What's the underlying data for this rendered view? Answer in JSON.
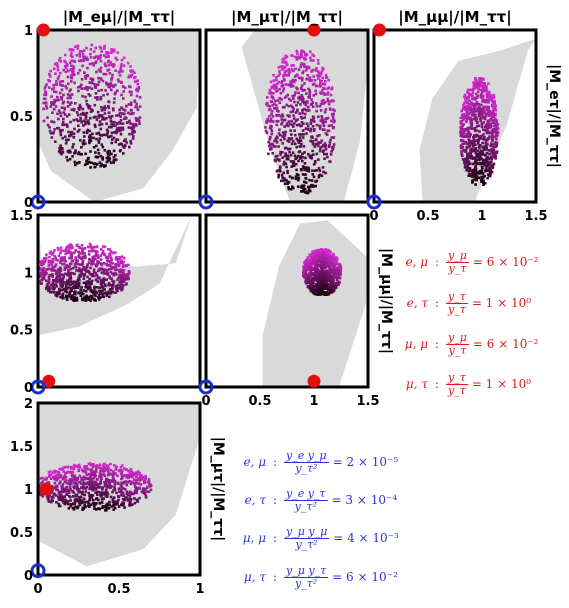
{
  "chart_data": [
    {
      "type": "scatter",
      "panel": "top-left",
      "title": "|M_eμ|/|M_ττ|",
      "xlim": [
        0,
        1.5
      ],
      "ylim": [
        0,
        1
      ],
      "yticks": [
        "0",
        "0.5",
        "1"
      ],
      "xticks": [],
      "allowed_region": "gray",
      "magenta_cloud": {
        "x_range": [
          0.05,
          0.95
        ],
        "y_range": [
          0.2,
          0.92
        ]
      },
      "red_point": [
        0.05,
        1.0
      ],
      "blue_point": [
        0.0,
        0.0
      ]
    },
    {
      "type": "scatter",
      "panel": "top-middle",
      "title": "|M_μτ|/|M_ττ|",
      "xlim": [
        0,
        1.5
      ],
      "ylim": [
        0,
        1
      ],
      "allowed_region": "gray",
      "magenta_cloud": {
        "x_range": [
          0.55,
          1.2
        ],
        "y_range": [
          0.05,
          0.88
        ]
      },
      "red_point": [
        1.0,
        1.0
      ],
      "blue_point": [
        0.0,
        0.0
      ]
    },
    {
      "type": "scatter",
      "panel": "top-right",
      "title": "|M_μμ|/|M_ττ|",
      "ylabel": "|M_eτ|/|M_ττ|",
      "xlim": [
        0,
        1.5
      ],
      "ylim": [
        0,
        1
      ],
      "xticks": [
        "0",
        "0.5",
        "1",
        "1.5"
      ],
      "allowed_region": "gray",
      "magenta_cloud": {
        "x_range": [
          0.8,
          1.15
        ],
        "y_range": [
          0.1,
          0.72
        ]
      },
      "red_point": [
        0.05,
        1.0
      ],
      "blue_point": [
        0.0,
        0.0
      ]
    },
    {
      "type": "scatter",
      "panel": "middle-left",
      "xlim": [
        0,
        1.5
      ],
      "ylim": [
        0,
        1.5
      ],
      "yticks": [
        "0",
        "0.5",
        "1",
        "1.5"
      ],
      "allowed_region": "gray",
      "magenta_cloud": {
        "x_range": [
          0.0,
          0.85
        ],
        "y_range": [
          0.75,
          1.25
        ]
      },
      "red_point": [
        0.1,
        0.05
      ],
      "blue_point": [
        0.0,
        0.0
      ]
    },
    {
      "type": "scatter",
      "panel": "middle-middle",
      "ylabel": "|M_μμ|/|M_ττ|",
      "xlim": [
        0,
        1.5
      ],
      "ylim": [
        0,
        1.5
      ],
      "xticks": [
        "0",
        "0.5",
        "1",
        "1.5"
      ],
      "allowed_region": "gray",
      "magenta_cloud": {
        "x_range": [
          0.9,
          1.25
        ],
        "y_range": [
          0.8,
          1.2
        ]
      },
      "red_point": [
        1.0,
        0.05
      ],
      "blue_point": [
        0.0,
        0.0
      ]
    },
    {
      "type": "scatter",
      "panel": "bottom-left",
      "ylabel": "|M_μτ|/|M_ττ|",
      "xlim": [
        0,
        1
      ],
      "ylim": [
        0,
        2
      ],
      "xticks": [
        "0",
        "0.5",
        "1"
      ],
      "yticks": [
        "0",
        "0.5",
        "1",
        "1.5",
        "2"
      ],
      "allowed_region": "gray",
      "magenta_cloud": {
        "x_range": [
          0.0,
          0.7
        ],
        "y_range": [
          0.75,
          1.3
        ]
      },
      "red_point": [
        0.05,
        1.0
      ],
      "blue_point": [
        0.0,
        0.05
      ]
    }
  ],
  "annotations": {
    "red": [
      {
        "label": "e, μ",
        "num": "y_μ",
        "den": "y_τ",
        "value": "= 6 × 10⁻²"
      },
      {
        "label": "e, τ",
        "num": "y_τ",
        "den": "y_τ",
        "value": "= 1 × 10⁰"
      },
      {
        "label": "μ, μ",
        "num": "y_μ",
        "den": "y_τ",
        "value": "= 6 × 10⁻²"
      },
      {
        "label": "μ, τ",
        "num": "y_τ",
        "den": "y_τ",
        "value": "= 1 × 10⁰"
      }
    ],
    "blue": [
      {
        "label": "e, μ",
        "num": "y_e y_μ",
        "den": "y_τ²",
        "value": "= 2 × 10⁻⁵"
      },
      {
        "label": "e, τ",
        "num": "y_e y_τ",
        "den": "y_τ²",
        "value": "= 3 × 10⁻⁴"
      },
      {
        "label": "μ, μ",
        "num": "y_μ y_μ",
        "den": "y_τ²",
        "value": "= 4 × 10⁻³"
      },
      {
        "label": "μ, τ",
        "num": "y_μ y_τ",
        "den": "y_τ²",
        "value": "= 6 × 10⁻²"
      }
    ]
  },
  "colors": {
    "allowed": "#d9d9d9",
    "cloud_light": "#ff33ff",
    "cloud_dark": "#1a0010",
    "red": "#e01010",
    "blue": "#1c2fd0"
  }
}
